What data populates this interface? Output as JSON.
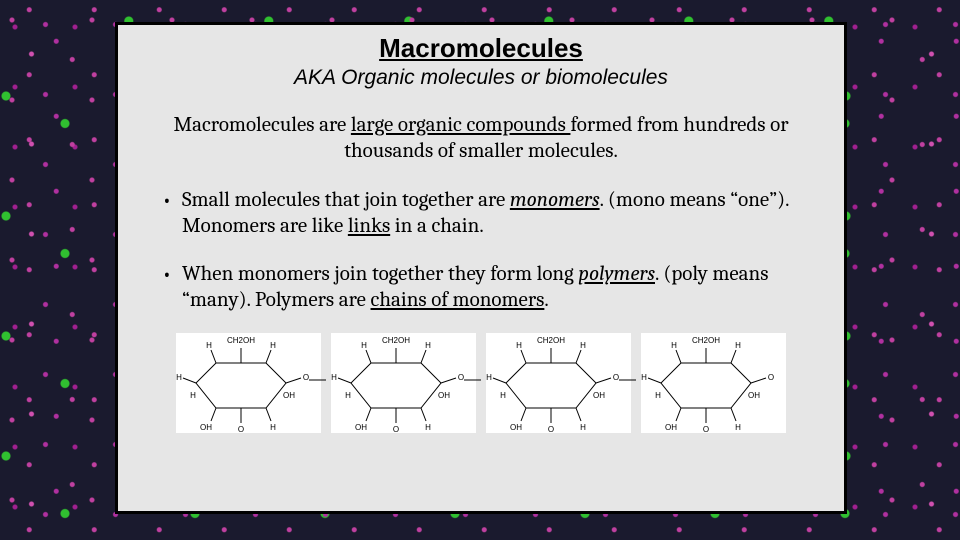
{
  "title": "Macromolecules",
  "subtitle": "AKA Organic molecules or biomolecules",
  "intro_pre": "Macromolecules are ",
  "intro_u": "large organic compounds ",
  "intro_post": "formed from hundreds or thousands of smaller molecules.",
  "bullet1_pre": "Small molecules that join together are ",
  "bullet1_term": "monomers",
  "bullet1_mid": ". (mono means “one”). Monomers are like ",
  "bullet1_u": "links",
  "bullet1_post": " in a chain.",
  "bullet2_pre": "When monomers join together they form long ",
  "bullet2_term": "polymers",
  "bullet2_mid": ". (poly means “many). Polymers are ",
  "bullet2_u": "chains of monomers",
  "bullet2_post": ".",
  "diagram": {
    "type": "chemical-structure",
    "monomer_count": 4,
    "atoms": {
      "ring": [
        "C",
        "C",
        "C",
        "C",
        "C",
        "O"
      ],
      "labels": [
        "H",
        "OH",
        "CH2OH"
      ]
    },
    "stroke_color": "#000000",
    "background_color": "#ffffff",
    "text_fontsize": 8,
    "line_width": 1
  },
  "colors": {
    "slide_bg": "#e6e6e6",
    "slide_border": "#000000",
    "text": "#000000",
    "backdrop_base": "#1a1a2e",
    "backdrop_accent1": "#c040a0",
    "backdrop_accent2": "#30c030"
  },
  "fonts": {
    "heading_family": "Arial",
    "body_family": "Cambria",
    "title_size_pt": 20,
    "subtitle_size_pt": 16,
    "body_size_pt": 16
  }
}
